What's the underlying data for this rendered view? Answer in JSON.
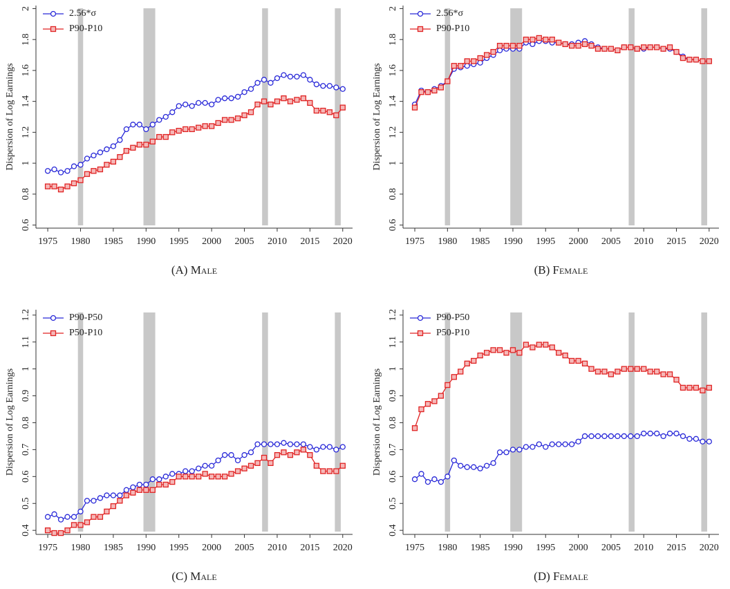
{
  "chart_data": [
    {
      "type": "line",
      "caption": "(A) Male",
      "y_label": "Dispersion of Log Earnings",
      "x": [
        1975,
        1976,
        1977,
        1978,
        1979,
        1980,
        1981,
        1982,
        1983,
        1984,
        1985,
        1986,
        1987,
        1988,
        1989,
        1990,
        1991,
        1992,
        1993,
        1994,
        1995,
        1996,
        1997,
        1998,
        1999,
        2000,
        2001,
        2002,
        2003,
        2004,
        2005,
        2006,
        2007,
        2008,
        2009,
        2010,
        2011,
        2012,
        2013,
        2014,
        2015,
        2016,
        2017,
        2018,
        2019,
        2020
      ],
      "series": [
        {
          "name": "2.56*σ",
          "color": "#2828d8",
          "marker": "circle",
          "values": [
            0.95,
            0.96,
            0.94,
            0.95,
            0.98,
            0.99,
            1.03,
            1.05,
            1.07,
            1.09,
            1.11,
            1.15,
            1.22,
            1.25,
            1.25,
            1.22,
            1.25,
            1.28,
            1.3,
            1.33,
            1.37,
            1.38,
            1.37,
            1.39,
            1.39,
            1.38,
            1.41,
            1.42,
            1.42,
            1.43,
            1.46,
            1.48,
            1.52,
            1.54,
            1.52,
            1.55,
            1.57,
            1.56,
            1.56,
            1.57,
            1.54,
            1.51,
            1.5,
            1.5,
            1.49,
            1.48
          ]
        },
        {
          "name": "P90-P10",
          "color": "#e02222",
          "marker": "square",
          "values": [
            0.85,
            0.85,
            0.83,
            0.85,
            0.87,
            0.89,
            0.93,
            0.95,
            0.96,
            0.99,
            1.01,
            1.04,
            1.08,
            1.1,
            1.12,
            1.12,
            1.14,
            1.17,
            1.17,
            1.2,
            1.21,
            1.22,
            1.22,
            1.23,
            1.24,
            1.24,
            1.26,
            1.28,
            1.28,
            1.29,
            1.31,
            1.33,
            1.38,
            1.4,
            1.38,
            1.4,
            1.42,
            1.4,
            1.41,
            1.42,
            1.39,
            1.34,
            1.34,
            1.33,
            1.31,
            1.36
          ]
        }
      ],
      "shaded_spans": [
        [
          1979.6,
          1980.4
        ],
        [
          1989.6,
          1991.4
        ],
        [
          2007.7,
          2008.6
        ],
        [
          2018.8,
          2019.7
        ]
      ],
      "xlim": [
        1973.2,
        2021.5
      ],
      "xticks": [
        1975,
        1980,
        1985,
        1990,
        1995,
        2000,
        2005,
        2010,
        2015,
        2020
      ],
      "ylim": [
        0.58,
        2.02
      ],
      "yticks": [
        0.6,
        0.8,
        1,
        1.2,
        1.4,
        1.6,
        1.8,
        2
      ],
      "legend": "upper left"
    },
    {
      "type": "line",
      "caption": "(B) Female",
      "y_label": "Dispersion of Log Earnings",
      "x": [
        1975,
        1976,
        1977,
        1978,
        1979,
        1980,
        1981,
        1982,
        1983,
        1984,
        1985,
        1986,
        1987,
        1988,
        1989,
        1990,
        1991,
        1992,
        1993,
        1994,
        1995,
        1996,
        1997,
        1998,
        1999,
        2000,
        2001,
        2002,
        2003,
        2004,
        2005,
        2006,
        2007,
        2008,
        2009,
        2010,
        2011,
        2012,
        2013,
        2014,
        2015,
        2016,
        2017,
        2018,
        2019,
        2020
      ],
      "series": [
        {
          "name": "2.56*σ",
          "color": "#2828d8",
          "marker": "circle",
          "values": [
            1.38,
            1.47,
            1.46,
            1.48,
            1.5,
            1.53,
            1.61,
            1.62,
            1.63,
            1.64,
            1.65,
            1.68,
            1.7,
            1.73,
            1.74,
            1.74,
            1.74,
            1.78,
            1.77,
            1.79,
            1.79,
            1.78,
            1.78,
            1.77,
            1.77,
            1.78,
            1.79,
            1.77,
            1.75,
            1.74,
            1.74,
            1.73,
            1.75,
            1.75,
            1.74,
            1.74,
            1.75,
            1.75,
            1.74,
            1.74,
            1.72,
            1.69,
            1.67,
            1.67,
            1.66,
            1.66
          ]
        },
        {
          "name": "P90-P10",
          "color": "#e02222",
          "marker": "square",
          "values": [
            1.36,
            1.46,
            1.46,
            1.47,
            1.49,
            1.53,
            1.63,
            1.63,
            1.66,
            1.66,
            1.68,
            1.7,
            1.72,
            1.76,
            1.76,
            1.76,
            1.76,
            1.8,
            1.8,
            1.81,
            1.8,
            1.8,
            1.78,
            1.77,
            1.76,
            1.76,
            1.77,
            1.76,
            1.74,
            1.74,
            1.74,
            1.73,
            1.75,
            1.75,
            1.74,
            1.75,
            1.75,
            1.75,
            1.74,
            1.75,
            1.72,
            1.68,
            1.67,
            1.67,
            1.66,
            1.66
          ]
        }
      ],
      "shaded_spans": [
        [
          1979.6,
          1980.4
        ],
        [
          1989.6,
          1991.4
        ],
        [
          2007.7,
          2008.6
        ],
        [
          2018.8,
          2019.7
        ]
      ],
      "xlim": [
        1973.2,
        2021.5
      ],
      "xticks": [
        1975,
        1980,
        1985,
        1990,
        1995,
        2000,
        2005,
        2010,
        2015,
        2020
      ],
      "ylim": [
        0.58,
        2.02
      ],
      "yticks": [
        0.6,
        0.8,
        1,
        1.2,
        1.4,
        1.6,
        1.8,
        2
      ],
      "legend": "upper left"
    },
    {
      "type": "line",
      "caption": "(C) Male",
      "y_label": "Dispersion of Log Earnings",
      "x": [
        1975,
        1976,
        1977,
        1978,
        1979,
        1980,
        1981,
        1982,
        1983,
        1984,
        1985,
        1986,
        1987,
        1988,
        1989,
        1990,
        1991,
        1992,
        1993,
        1994,
        1995,
        1996,
        1997,
        1998,
        1999,
        2000,
        2001,
        2002,
        2003,
        2004,
        2005,
        2006,
        2007,
        2008,
        2009,
        2010,
        2011,
        2012,
        2013,
        2014,
        2015,
        2016,
        2017,
        2018,
        2019,
        2020
      ],
      "series": [
        {
          "name": "P90-P50",
          "color": "#2828d8",
          "marker": "circle",
          "values": [
            0.45,
            0.46,
            0.44,
            0.45,
            0.45,
            0.47,
            0.51,
            0.51,
            0.52,
            0.53,
            0.53,
            0.53,
            0.55,
            0.56,
            0.57,
            0.57,
            0.59,
            0.59,
            0.6,
            0.61,
            0.61,
            0.62,
            0.62,
            0.63,
            0.64,
            0.64,
            0.66,
            0.68,
            0.68,
            0.66,
            0.68,
            0.69,
            0.72,
            0.72,
            0.72,
            0.72,
            0.725,
            0.72,
            0.72,
            0.72,
            0.71,
            0.7,
            0.71,
            0.71,
            0.7,
            0.71
          ]
        },
        {
          "name": "P50-P10",
          "color": "#e02222",
          "marker": "square",
          "values": [
            0.4,
            0.39,
            0.39,
            0.4,
            0.42,
            0.42,
            0.43,
            0.45,
            0.45,
            0.47,
            0.49,
            0.51,
            0.53,
            0.54,
            0.55,
            0.55,
            0.55,
            0.57,
            0.57,
            0.58,
            0.6,
            0.6,
            0.6,
            0.6,
            0.61,
            0.6,
            0.6,
            0.6,
            0.61,
            0.62,
            0.63,
            0.64,
            0.65,
            0.67,
            0.65,
            0.68,
            0.69,
            0.68,
            0.69,
            0.7,
            0.68,
            0.64,
            0.62,
            0.62,
            0.62,
            0.64
          ]
        }
      ],
      "shaded_spans": [
        [
          1979.6,
          1980.4
        ],
        [
          1989.6,
          1991.4
        ],
        [
          2007.7,
          2008.6
        ],
        [
          2018.8,
          2019.7
        ]
      ],
      "xlim": [
        1973.2,
        2021.5
      ],
      "xticks": [
        1975,
        1980,
        1985,
        1990,
        1995,
        2000,
        2005,
        2010,
        2015,
        2020
      ],
      "ylim": [
        0.385,
        1.22
      ],
      "yticks": [
        0.4,
        0.5,
        0.6,
        0.7,
        0.8,
        0.9,
        1,
        1.1,
        1.2
      ],
      "legend": "upper left"
    },
    {
      "type": "line",
      "caption": "(D) Female",
      "y_label": "Dispersion of Log Earnings",
      "x": [
        1975,
        1976,
        1977,
        1978,
        1979,
        1980,
        1981,
        1982,
        1983,
        1984,
        1985,
        1986,
        1987,
        1988,
        1989,
        1990,
        1991,
        1992,
        1993,
        1994,
        1995,
        1996,
        1997,
        1998,
        1999,
        2000,
        2001,
        2002,
        2003,
        2004,
        2005,
        2006,
        2007,
        2008,
        2009,
        2010,
        2011,
        2012,
        2013,
        2014,
        2015,
        2016,
        2017,
        2018,
        2019,
        2020
      ],
      "series": [
        {
          "name": "P90-P50",
          "color": "#2828d8",
          "marker": "circle",
          "values": [
            0.59,
            0.61,
            0.58,
            0.59,
            0.58,
            0.6,
            0.66,
            0.64,
            0.635,
            0.635,
            0.63,
            0.64,
            0.65,
            0.69,
            0.69,
            0.7,
            0.7,
            0.71,
            0.71,
            0.72,
            0.71,
            0.72,
            0.72,
            0.72,
            0.72,
            0.73,
            0.75,
            0.75,
            0.75,
            0.75,
            0.75,
            0.75,
            0.75,
            0.75,
            0.75,
            0.76,
            0.76,
            0.76,
            0.75,
            0.76,
            0.76,
            0.75,
            0.74,
            0.74,
            0.73,
            0.73
          ]
        },
        {
          "name": "P50-P10",
          "color": "#e02222",
          "marker": "square",
          "values": [
            0.78,
            0.85,
            0.87,
            0.88,
            0.9,
            0.94,
            0.97,
            0.99,
            1.02,
            1.03,
            1.05,
            1.06,
            1.07,
            1.07,
            1.06,
            1.07,
            1.06,
            1.09,
            1.08,
            1.09,
            1.09,
            1.08,
            1.06,
            1.05,
            1.03,
            1.03,
            1.02,
            1.0,
            0.99,
            0.99,
            0.98,
            0.99,
            1.0,
            1.0,
            1.0,
            1.0,
            0.99,
            0.99,
            0.98,
            0.98,
            0.96,
            0.93,
            0.93,
            0.93,
            0.92,
            0.93
          ]
        }
      ],
      "shaded_spans": [
        [
          1979.6,
          1980.4
        ],
        [
          1989.6,
          1991.4
        ],
        [
          2007.7,
          2008.6
        ],
        [
          2018.8,
          2019.7
        ]
      ],
      "xlim": [
        1973.2,
        2021.5
      ],
      "xticks": [
        1975,
        1980,
        1985,
        1990,
        1995,
        2000,
        2005,
        2010,
        2015,
        2020
      ],
      "ylim": [
        0.385,
        1.22
      ],
      "yticks": [
        0.4,
        0.5,
        0.6,
        0.7,
        0.8,
        0.9,
        1,
        1.1,
        1.2
      ],
      "legend": "upper left"
    }
  ]
}
